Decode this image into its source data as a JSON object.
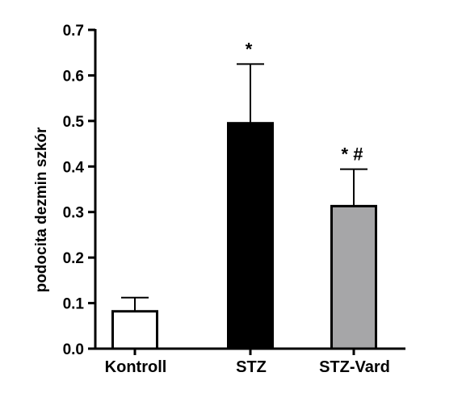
{
  "chart_data": {
    "type": "bar",
    "categories": [
      "Kontroll",
      "STZ",
      "STZ-Vard"
    ],
    "values": [
      0.082,
      0.495,
      0.313
    ],
    "errors_upper": [
      0.112,
      0.625,
      0.394
    ],
    "annotations": [
      "",
      "*",
      "* #"
    ],
    "bar_colors": [
      "#ffffff",
      "#000000",
      "#a6a6a8"
    ],
    "xlabel": "",
    "ylabel": "podocita dezmin szkór",
    "ylim": [
      0,
      0.7
    ],
    "yticks": [
      "0.0",
      "0.1",
      "0.2",
      "0.3",
      "0.4",
      "0.5",
      "0.6",
      "0.7"
    ],
    "grid": false,
    "legend": "none"
  }
}
